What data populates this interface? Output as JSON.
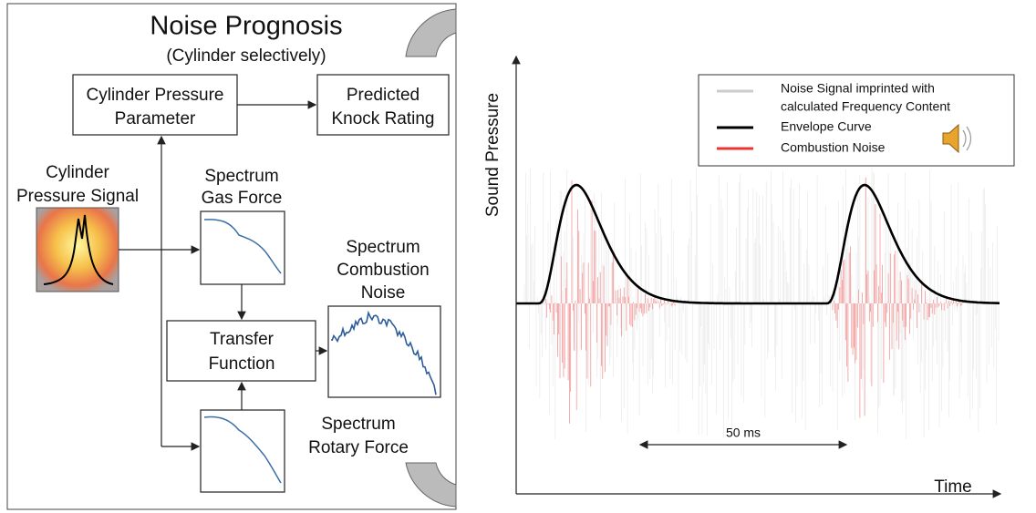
{
  "left": {
    "title": "Noise Prognosis",
    "subtitle": "(Cylinder selectively)",
    "nodes": [
      {
        "lines": [
          "Cylinder Pressure",
          "Parameter"
        ]
      },
      {
        "lines": [
          "Predicted",
          "Knock Rating"
        ]
      },
      {
        "lines": [
          "Cylinder",
          "Pressure Signal"
        ]
      },
      {
        "lines": [
          "Spectrum",
          "Gas Force"
        ]
      },
      {
        "lines": [
          "Transfer",
          "Function"
        ]
      },
      {
        "lines": [
          "Spectrum",
          "Combustion",
          "Noise"
        ]
      },
      {
        "lines": [
          "Spectrum",
          "Rotary Force"
        ]
      }
    ]
  },
  "right": {
    "y_axis_label": "Sound Pressure",
    "x_axis_label": "Time",
    "legend": [
      {
        "lines": [
          "Noise Signal imprinted with",
          "calculated Frequency Content"
        ]
      },
      {
        "lines": [
          "Envelope Curve"
        ]
      },
      {
        "lines": [
          "Combustion Noise"
        ]
      }
    ],
    "annotation": "50 ms"
  }
}
